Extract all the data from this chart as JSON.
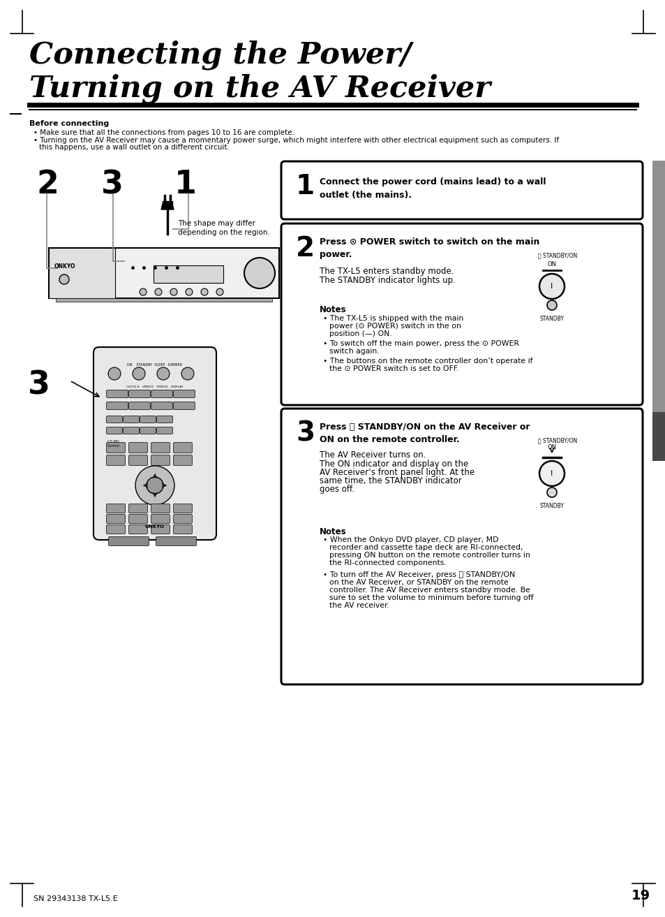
{
  "title_line1": "Connecting the Power/",
  "title_line2": "Turning on the AV Receiver",
  "bg_color": "#ffffff",
  "page_number": "19",
  "footer_text": "SN 29343138 TX-L5.E",
  "before_connecting_title": "Before connecting",
  "bullet1": "Make sure that all the connections from pages 10 to 16 are complete.",
  "bullet2a": "Turning on the AV Receiver may cause a momentary power surge, which might interfere with other electrical equipment such as computers. If",
  "bullet2b": "this happens, use a wall outlet on a different circuit.",
  "shape_note": "The shape may differ\ndepending on the region.",
  "step1_text_bold": "Connect the power cord (mains lead) to a wall\noutlet (the mains).",
  "step2_header": "Press ⊙ POWER switch to switch on the main\npower.",
  "step2_body1": "The TX-L5 enters standby mode.",
  "step2_body2": "The STANDBY indicator lights up.",
  "step2_notes_title": "Notes",
  "step2_note1": "The TX-L5 is shipped with the main",
  "step2_note1b": "power (⊙ POWER) switch in the on",
  "step2_note1c": "position (—) ON.",
  "step2_note2": "To switch off the main power, press the ⊙ POWER",
  "step2_note2b": "switch again.",
  "step2_note3": "The buttons on the remote controller don’t operate if",
  "step2_note3b": "the ⊙ POWER switch is set to OFF.",
  "step3_header": "Press ⏻ STANDBY/ON on the AV Receiver or\nON on the remote controller.",
  "step3_body1": "The AV Receiver turns on.",
  "step3_body2": "The ON indicator and display on the",
  "step3_body3": "AV Receiver’s front panel light. At the",
  "step3_body4": "same time, the STANDBY indicator",
  "step3_body5": "goes off.",
  "step3_notes_title": "Notes",
  "step3_note1a": "When the Onkyo DVD player, CD player, MD",
  "step3_note1b": "recorder and cassette tape deck are RI-connected,",
  "step3_note1c": "pressing ON button on the remote controller turns in",
  "step3_note1d": "the RI-connected components.",
  "step3_note2a": "To turn off the AV Receiver, press ⏻ STANDBY/ON",
  "step3_note2b": "on the AV Receiver, or STANDBY on the remote",
  "step3_note2c": "controller. The AV Receiver enters standby mode. Be",
  "step3_note2d": "sure to set the volume to minimum before turning off",
  "step3_note2e": "the AV receiver.",
  "tab_color1": "#909090",
  "tab_color2": "#484848"
}
